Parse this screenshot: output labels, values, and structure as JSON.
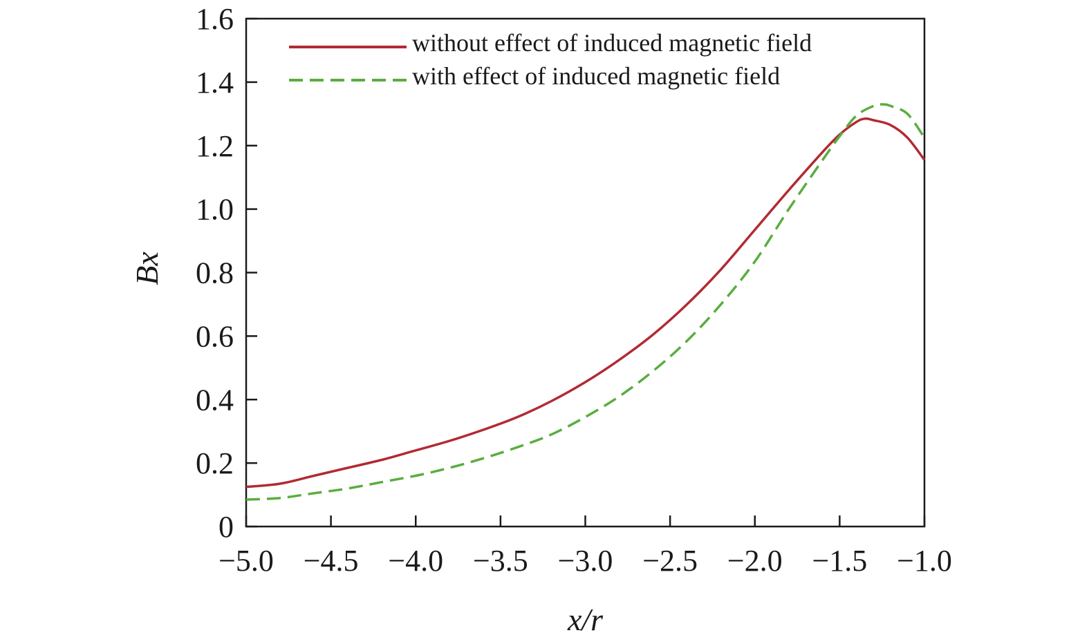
{
  "chart_data": {
    "type": "line",
    "title": "",
    "xlabel": "x/r",
    "ylabel": "Bx",
    "xlim": [
      -5.0,
      -1.0
    ],
    "ylim": [
      0,
      1.6
    ],
    "x_ticks": [
      -5.0,
      -4.5,
      -4.0,
      -3.5,
      -3.0,
      -2.5,
      -2.0,
      -1.5,
      -1.0
    ],
    "x_tick_labels": [
      "−5.0",
      "−4.5",
      "−4.0",
      "−3.5",
      "−3.0",
      "−2.5",
      "−2.0",
      "−1.5",
      "−1.0"
    ],
    "y_ticks": [
      0,
      0.2,
      0.4,
      0.6,
      0.8,
      1.0,
      1.2,
      1.4,
      1.6
    ],
    "y_tick_labels": [
      "0",
      "0.2",
      "0.4",
      "0.6",
      "0.8",
      "1.0",
      "1.2",
      "1.4",
      "1.6"
    ],
    "grid": false,
    "legend_position": "top",
    "series": [
      {
        "name": "without effect of induced magnetic field",
        "color": "#b22a33",
        "style": "solid",
        "x": [
          -5.0,
          -4.8,
          -4.6,
          -4.4,
          -4.2,
          -4.0,
          -3.8,
          -3.6,
          -3.4,
          -3.2,
          -3.0,
          -2.8,
          -2.6,
          -2.4,
          -2.2,
          -2.0,
          -1.8,
          -1.6,
          -1.5,
          -1.4,
          -1.35,
          -1.3,
          -1.2,
          -1.1,
          -1.0
        ],
        "y": [
          0.125,
          0.135,
          0.16,
          0.185,
          0.21,
          0.24,
          0.27,
          0.305,
          0.345,
          0.395,
          0.455,
          0.525,
          0.605,
          0.7,
          0.81,
          0.935,
          1.06,
          1.18,
          1.235,
          1.275,
          1.285,
          1.28,
          1.265,
          1.225,
          1.155
        ]
      },
      {
        "name": "with effect of induced magnetic field",
        "color": "#5aad3f",
        "style": "dashed",
        "x": [
          -5.0,
          -4.8,
          -4.6,
          -4.4,
          -4.2,
          -4.0,
          -3.8,
          -3.6,
          -3.4,
          -3.2,
          -3.0,
          -2.8,
          -2.6,
          -2.4,
          -2.2,
          -2.0,
          -1.8,
          -1.6,
          -1.5,
          -1.4,
          -1.3,
          -1.25,
          -1.2,
          -1.1,
          -1.0
        ],
        "y": [
          0.085,
          0.09,
          0.105,
          0.12,
          0.14,
          0.16,
          0.185,
          0.215,
          0.25,
          0.29,
          0.345,
          0.41,
          0.49,
          0.585,
          0.7,
          0.835,
          1.0,
          1.155,
          1.23,
          1.295,
          1.325,
          1.33,
          1.325,
          1.3,
          1.225
        ]
      }
    ]
  }
}
